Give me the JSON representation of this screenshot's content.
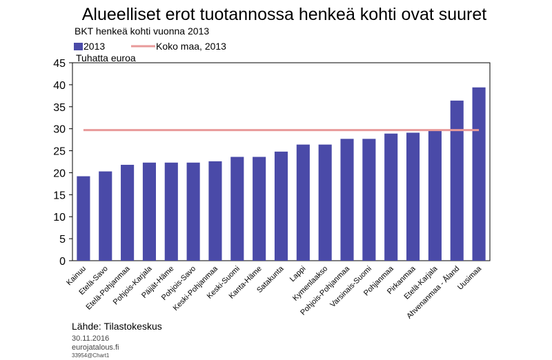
{
  "chart_data": {
    "type": "bar",
    "title": "Alueelliset erot tuotannossa henkeä kohti ovat suuret",
    "subtitle": "BKT henkeä kohti vuonna 2013",
    "unit_label": "Tuhatta euroa",
    "ylim": [
      0,
      45
    ],
    "yticks": [
      0,
      5,
      10,
      15,
      20,
      25,
      30,
      35,
      40,
      45
    ],
    "grid": false,
    "legend_position": "top-left",
    "categories": [
      "Kainuu",
      "Etelä-Savo",
      "Etelä-Pohjanmaa",
      "Pohjois-Karjala",
      "Päijät-Häme",
      "Pohjois-Savo",
      "Keski-Pohjanmaa",
      "Keski-Suomi",
      "Kanta-Häme",
      "Satakunta",
      "Lappi",
      "Kymenlaakso",
      "Pohjois-Pohjanmaa",
      "Varsinais-Suomi",
      "Pohjanmaa",
      "Pirkanmaa",
      "Etelä-Karjala",
      "Ahvenanmaa - Åland",
      "Uusimaa"
    ],
    "series": [
      {
        "name": "2013",
        "type": "bar",
        "color": "#4a4aa8",
        "values": [
          19.2,
          20.3,
          21.8,
          22.3,
          22.3,
          22.3,
          22.6,
          23.6,
          23.6,
          24.8,
          26.4,
          26.4,
          27.7,
          27.7,
          28.9,
          29.1,
          29.5,
          36.4,
          39.4
        ]
      },
      {
        "name": "Koko maa, 2013",
        "type": "reference-line",
        "color": "#e89a9a",
        "value": 29.7
      }
    ]
  },
  "footer": {
    "source": "Lähde: Tilastokeskus",
    "date": "30.11.2016",
    "site": "eurojatalous.fi",
    "code": "33954@Chart1"
  }
}
